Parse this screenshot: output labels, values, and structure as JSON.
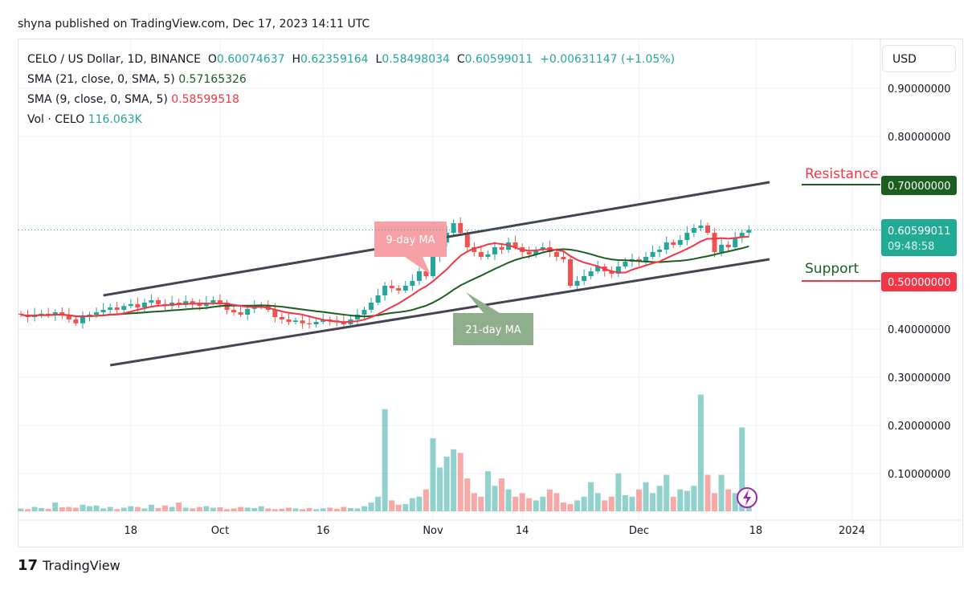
{
  "publisher": "shyna published on TradingView.com, Dec 17, 2023 14:11 UTC",
  "legend": {
    "symbol": "CELO / US Dollar, 1D, BINANCE",
    "o_label": "O",
    "o": "0.60074637",
    "h_label": "H",
    "h": "0.62359164",
    "l_label": "L",
    "l": "0.58498034",
    "c_label": "C",
    "c": "0.60599011",
    "change": "+0.00631147 (+1.05%)",
    "sma21_label": "SMA (21, close, 0, SMA, 5)",
    "sma21": "0.57165326",
    "sma9_label": "SMA (9, close, 0, SMA, 5)",
    "sma9": "0.58599518",
    "vol_label": "Vol · CELO",
    "vol": "116.063K"
  },
  "currency": "USD",
  "logo": "TradingView",
  "colors": {
    "up": "#26a69a",
    "down": "#ef5350",
    "sma9": "#f23645",
    "sma21": "#1b5e20",
    "resistance": "#1b5e20",
    "support": "#f23645"
  },
  "chart_data": {
    "type": "candlestick",
    "start_date": "2023-09-02",
    "closes": [
      0.43,
      0.425,
      0.43,
      0.432,
      0.428,
      0.435,
      0.43,
      0.42,
      0.412,
      0.425,
      0.43,
      0.435,
      0.44,
      0.445,
      0.44,
      0.448,
      0.452,
      0.445,
      0.455,
      0.46,
      0.452,
      0.448,
      0.455,
      0.45,
      0.458,
      0.452,
      0.448,
      0.455,
      0.46,
      0.455,
      0.44,
      0.435,
      0.43,
      0.442,
      0.448,
      0.45,
      0.44,
      0.425,
      0.42,
      0.415,
      0.418,
      0.412,
      0.41,
      0.415,
      0.42,
      0.418,
      0.414,
      0.41,
      0.42,
      0.43,
      0.44,
      0.455,
      0.47,
      0.49,
      0.485,
      0.48,
      0.49,
      0.5,
      0.52,
      0.51,
      0.55,
      0.58,
      0.6,
      0.62,
      0.6,
      0.57,
      0.56,
      0.55,
      0.555,
      0.57,
      0.565,
      0.58,
      0.57,
      0.56,
      0.555,
      0.565,
      0.57,
      0.56,
      0.55,
      0.545,
      0.49,
      0.5,
      0.51,
      0.52,
      0.53,
      0.52,
      0.515,
      0.53,
      0.54,
      0.545,
      0.54,
      0.55,
      0.56,
      0.565,
      0.58,
      0.575,
      0.585,
      0.6,
      0.61,
      0.615,
      0.6,
      0.56,
      0.575,
      0.57,
      0.59,
      0.6,
      0.606
    ],
    "volumes_k": [
      40,
      30,
      60,
      45,
      35,
      120,
      55,
      60,
      50,
      90,
      70,
      80,
      40,
      60,
      30,
      50,
      70,
      60,
      40,
      90,
      45,
      80,
      60,
      120,
      50,
      40,
      60,
      70,
      50,
      55,
      30,
      40,
      60,
      50,
      45,
      70,
      40,
      30,
      35,
      50,
      40,
      30,
      45,
      30,
      40,
      50,
      35,
      60,
      45,
      40,
      70,
      120,
      200,
      1400,
      150,
      90,
      100,
      180,
      200,
      300,
      1000,
      600,
      750,
      850,
      800,
      450,
      250,
      200,
      550,
      350,
      450,
      300,
      200,
      250,
      180,
      150,
      200,
      300,
      250,
      120,
      100,
      150,
      200,
      400,
      250,
      150,
      200,
      520,
      220,
      200,
      300,
      400,
      250,
      350,
      500,
      200,
      300,
      280,
      350,
      1600,
      500,
      250,
      500,
      300,
      250,
      1150,
      116
    ],
    "sma_periods": [
      9,
      21
    ],
    "sma_labels": [
      "9-day MA",
      "21-day MA"
    ],
    "y_ticks": [
      "0.90000000",
      "0.80000000",
      "0.70000000",
      "0.40000000",
      "0.30000000",
      "0.20000000",
      "0.10000000"
    ],
    "y_tick_values": [
      0.9,
      0.8,
      0.7,
      0.4,
      0.3,
      0.2,
      0.1
    ],
    "x_ticks": [
      {
        "label": "18",
        "date": "2023-09-18"
      },
      {
        "label": "Oct",
        "date": "2023-10-01"
      },
      {
        "label": "16",
        "date": "2023-10-16"
      },
      {
        "label": "Nov",
        "date": "2023-11-01"
      },
      {
        "label": "14",
        "date": "2023-11-14"
      },
      {
        "label": "Dec",
        "date": "2023-12-01"
      },
      {
        "label": "18",
        "date": "2023-12-18"
      },
      {
        "label": "2024",
        "date": "2024-01-01"
      }
    ],
    "channel": {
      "upper": [
        [
          "2023-09-14",
          0.47
        ],
        [
          "2023-12-20",
          0.705
        ]
      ],
      "lower": [
        [
          "2023-09-15",
          0.325
        ],
        [
          "2023-12-20",
          0.545
        ]
      ]
    },
    "resistance": {
      "label": "Resistance",
      "value": "0.70000000",
      "price": 0.7
    },
    "support": {
      "label": "Support",
      "value": "0.50000000",
      "price": 0.5
    },
    "last": {
      "value": "0.60599011",
      "countdown": "09:48:58",
      "price": 0.606
    }
  }
}
